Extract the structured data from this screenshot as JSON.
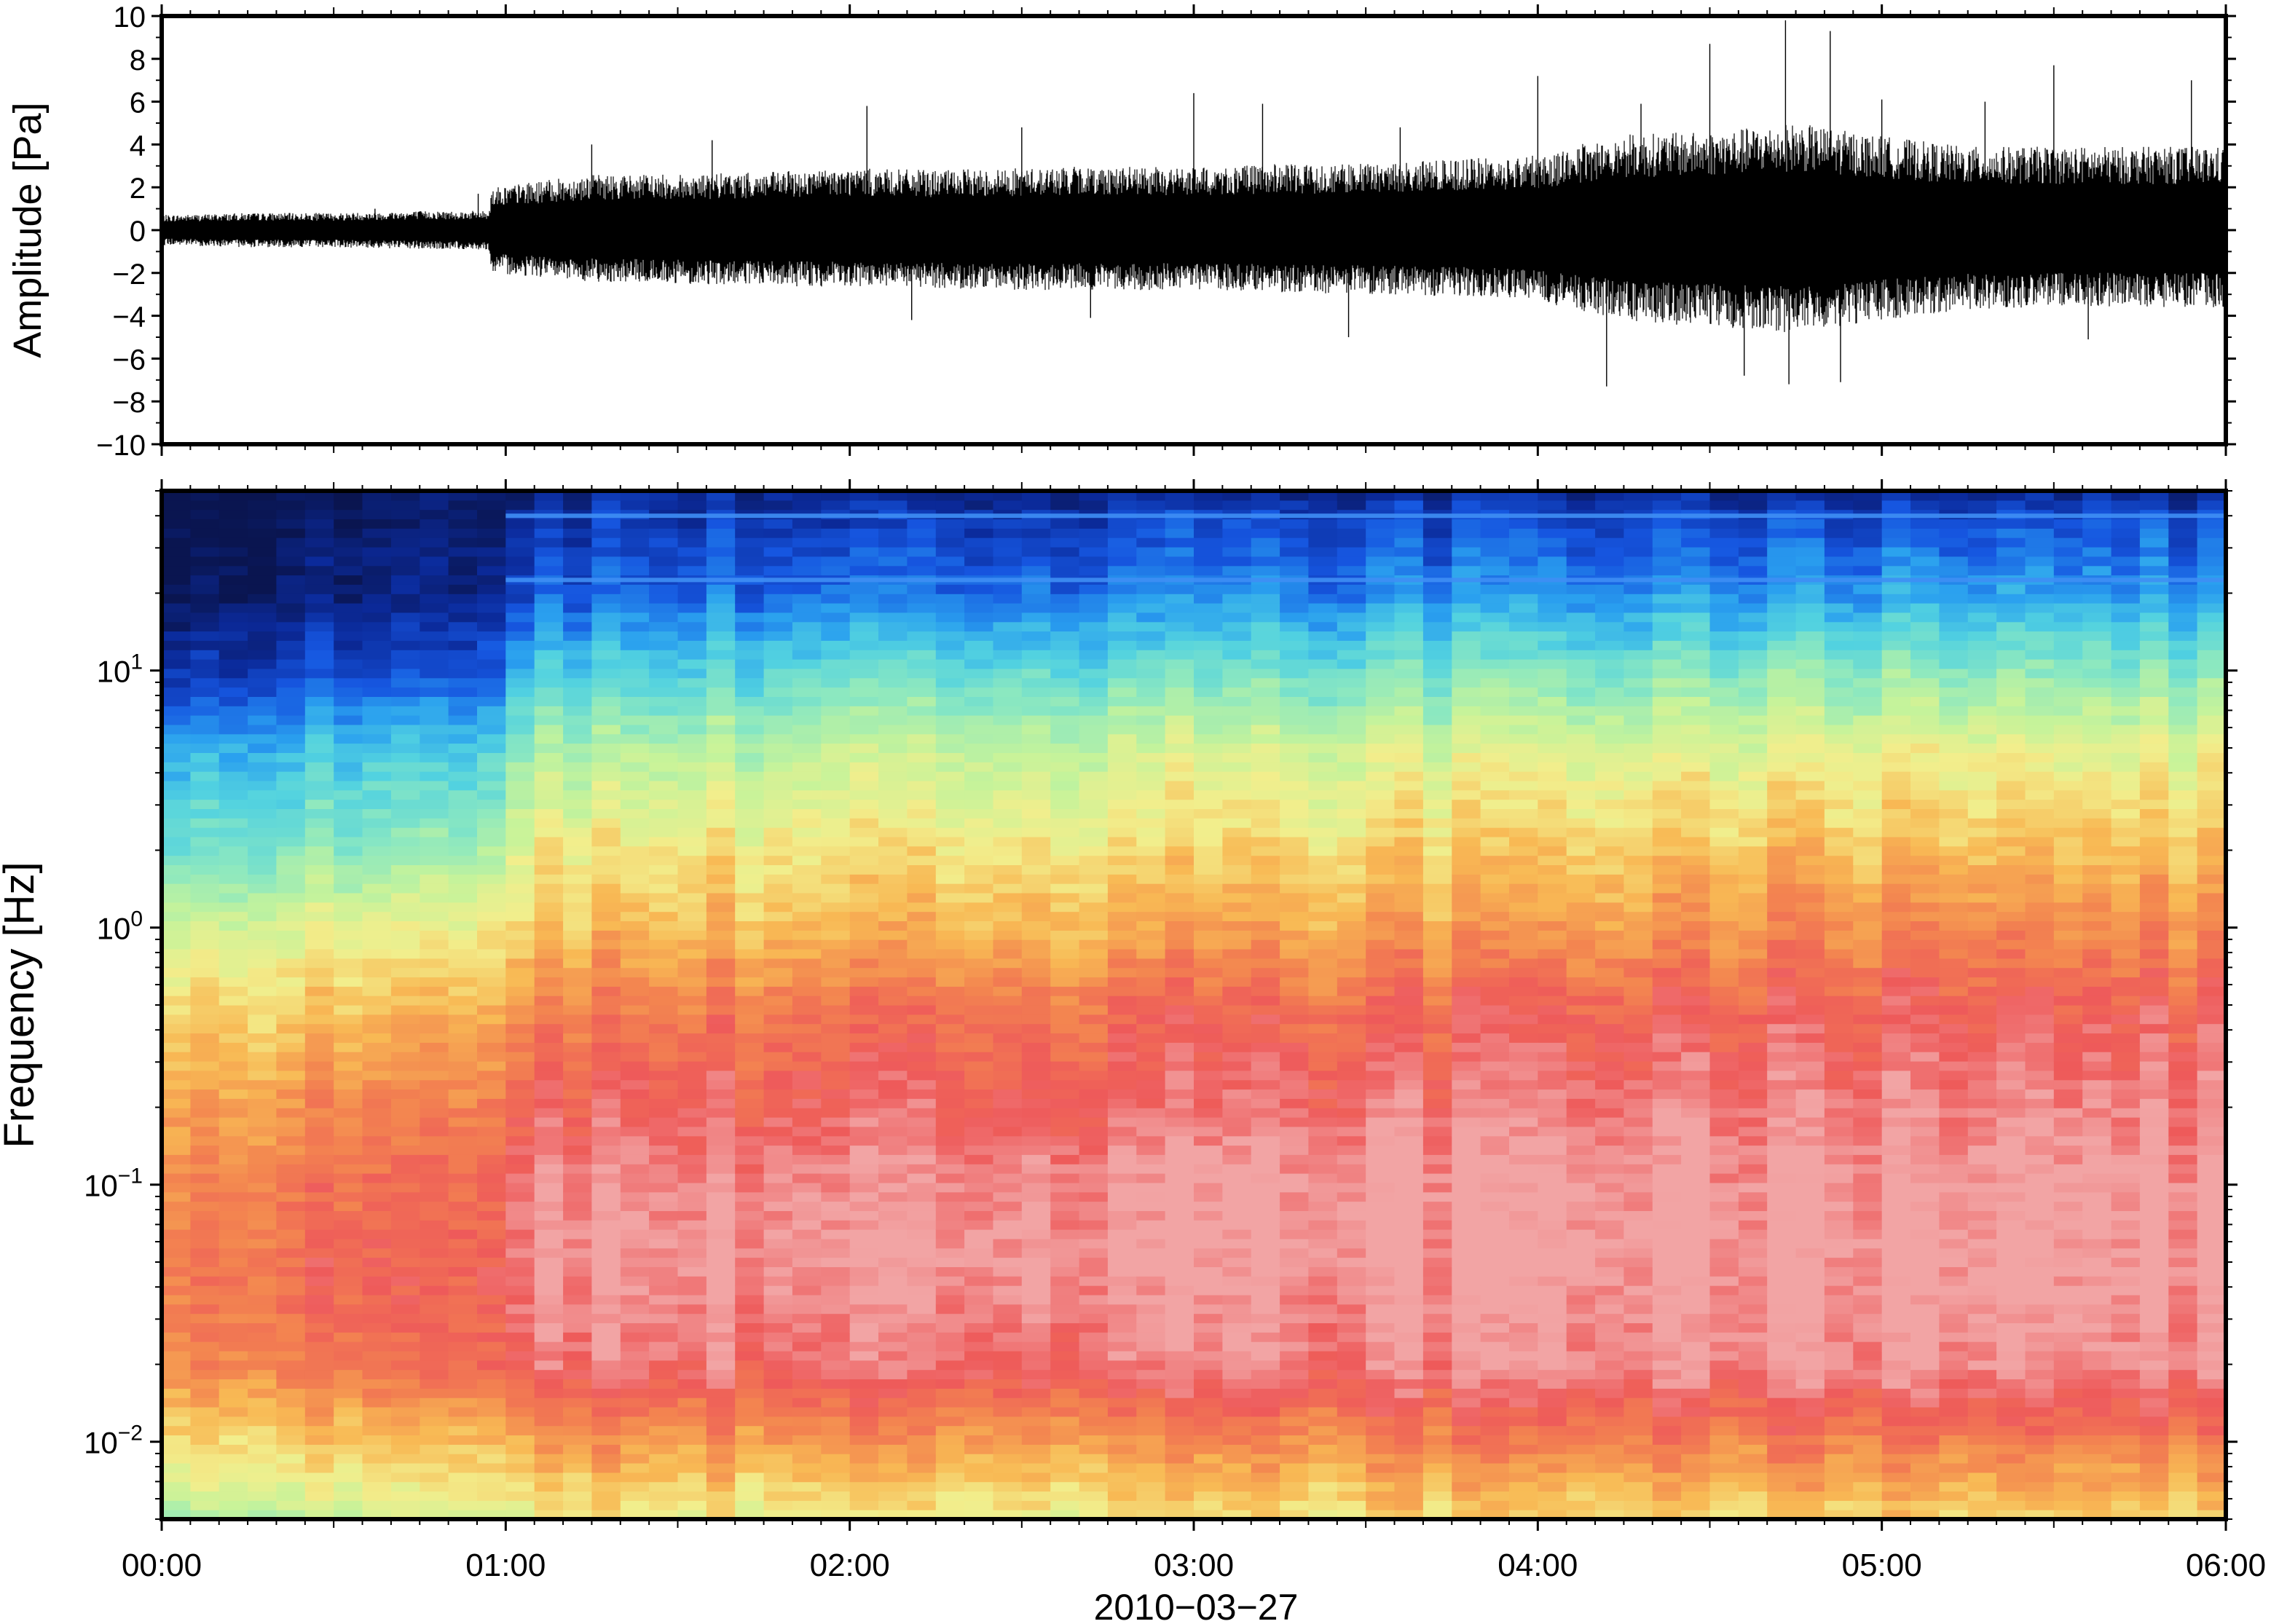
{
  "chart_data": [
    {
      "type": "line",
      "title": "",
      "xlabel": "",
      "ylabel": "Amplitude [Pa]",
      "x_range_hours": [
        0,
        6
      ],
      "ylim": [
        -10,
        10
      ],
      "yticks": [
        -10,
        -8,
        -6,
        -4,
        -2,
        0,
        2,
        4,
        6,
        8,
        10
      ],
      "ytick_labels": [
        "−10",
        "−8",
        "−6",
        "−4",
        "−2",
        "0",
        "2",
        "4",
        "6",
        "8",
        "10"
      ],
      "grid": false,
      "series": [
        {
          "x_hours": [
            0.0,
            0.25,
            0.5,
            0.75,
            0.95,
            0.96,
            1.25,
            1.5,
            1.75,
            2.0,
            2.25,
            2.5,
            2.75,
            3.0,
            3.25,
            3.5,
            3.75,
            4.0,
            4.25,
            4.5,
            4.75,
            5.0,
            5.25,
            5.5,
            5.75,
            6.0
          ],
          "envelope_upper": [
            0.7,
            0.8,
            0.8,
            0.9,
            0.9,
            2.0,
            2.6,
            2.6,
            2.7,
            2.9,
            2.8,
            2.9,
            3.0,
            2.9,
            3.1,
            3.1,
            3.3,
            3.5,
            4.5,
            4.6,
            5.0,
            4.4,
            3.9,
            3.9,
            3.9,
            3.9
          ],
          "envelope_lower": [
            -0.7,
            -0.8,
            -0.8,
            -0.9,
            -0.9,
            -2.0,
            -2.4,
            -2.5,
            -2.6,
            -2.7,
            -2.7,
            -2.8,
            -2.8,
            -2.8,
            -2.9,
            -3.0,
            -3.1,
            -3.3,
            -4.3,
            -4.5,
            -4.8,
            -4.2,
            -3.7,
            -3.6,
            -3.6,
            -3.6
          ],
          "peaks": [
            {
              "x": 0.62,
              "y": 1.0
            },
            {
              "x": 0.92,
              "y": 1.7
            },
            {
              "x": 1.25,
              "y": 4.0
            },
            {
              "x": 1.6,
              "y": 4.2
            },
            {
              "x": 2.05,
              "y": 5.8
            },
            {
              "x": 2.18,
              "y": -4.2
            },
            {
              "x": 2.5,
              "y": 4.8
            },
            {
              "x": 2.7,
              "y": -4.1
            },
            {
              "x": 3.0,
              "y": 6.4
            },
            {
              "x": 3.2,
              "y": 5.9
            },
            {
              "x": 3.45,
              "y": -5.0
            },
            {
              "x": 3.6,
              "y": 4.8
            },
            {
              "x": 4.0,
              "y": 7.2
            },
            {
              "x": 4.2,
              "y": -7.3
            },
            {
              "x": 4.3,
              "y": 5.9
            },
            {
              "x": 4.5,
              "y": 8.7
            },
            {
              "x": 4.6,
              "y": -6.8
            },
            {
              "x": 4.72,
              "y": 9.8
            },
            {
              "x": 4.73,
              "y": -7.2
            },
            {
              "x": 4.85,
              "y": 9.3
            },
            {
              "x": 4.88,
              "y": -7.1
            },
            {
              "x": 5.0,
              "y": 6.1
            },
            {
              "x": 5.3,
              "y": 6.0
            },
            {
              "x": 5.5,
              "y": 7.7
            },
            {
              "x": 5.6,
              "y": -5.1
            },
            {
              "x": 5.9,
              "y": 7.0
            }
          ]
        }
      ]
    },
    {
      "type": "heatmap",
      "title": "",
      "xlabel": "2010−03−27",
      "ylabel": "Frequency [Hz]",
      "y_scale": "log",
      "ylim": [
        0.005,
        50
      ],
      "yticks": [
        0.01,
        0.1,
        1,
        10
      ],
      "ytick_labels": [
        {
          "base": "10",
          "exp": "−2"
        },
        {
          "base": "10",
          "exp": "−1"
        },
        {
          "base": "10",
          "exp": "0"
        },
        {
          "base": "10",
          "exp": "1"
        }
      ],
      "x_range_hours": [
        0,
        6
      ],
      "xticks_hours": [
        0,
        1,
        2,
        3,
        4,
        5,
        6
      ],
      "xtick_labels": [
        "00:00",
        "01:00",
        "02:00",
        "03:00",
        "04:00",
        "05:00",
        "06:00"
      ],
      "colormap": [
        "#0a1550",
        "#0b2a9a",
        "#1656e0",
        "#2aa0ef",
        "#52d2e0",
        "#8ce8c0",
        "#c6f39a",
        "#f2ee8c",
        "#f8b954",
        "#f38550",
        "#ee5a5a",
        "#f2a4a4"
      ],
      "color_value_range": [
        0,
        1
      ],
      "time_hours": [
        0.0,
        0.5,
        0.95,
        1.0,
        1.5,
        2.0,
        2.5,
        3.0,
        3.5,
        4.0,
        4.5,
        5.0,
        5.5,
        6.0
      ],
      "freq_hz": [
        0.005,
        0.01,
        0.02,
        0.05,
        0.1,
        0.2,
        0.5,
        1,
        2,
        5,
        10,
        20,
        40,
        50
      ],
      "values": [
        [
          0.55,
          0.7,
          0.84,
          0.87,
          0.84,
          0.8,
          0.7,
          0.6,
          0.46,
          0.33,
          0.15,
          0.05,
          0.02,
          0.02
        ],
        [
          0.55,
          0.7,
          0.85,
          0.88,
          0.85,
          0.8,
          0.7,
          0.6,
          0.46,
          0.33,
          0.15,
          0.05,
          0.02,
          0.02
        ],
        [
          0.58,
          0.71,
          0.86,
          0.88,
          0.86,
          0.82,
          0.72,
          0.62,
          0.48,
          0.34,
          0.16,
          0.06,
          0.02,
          0.02
        ],
        [
          0.62,
          0.77,
          0.93,
          0.98,
          0.96,
          0.9,
          0.8,
          0.7,
          0.62,
          0.48,
          0.33,
          0.16,
          0.1,
          0.06
        ],
        [
          0.63,
          0.78,
          0.94,
          0.99,
          0.97,
          0.92,
          0.83,
          0.72,
          0.65,
          0.52,
          0.37,
          0.2,
          0.12,
          0.08
        ],
        [
          0.63,
          0.79,
          0.95,
          1.0,
          0.98,
          0.93,
          0.85,
          0.74,
          0.66,
          0.55,
          0.4,
          0.22,
          0.12,
          0.08
        ],
        [
          0.64,
          0.8,
          0.95,
          1.0,
          0.99,
          0.94,
          0.86,
          0.75,
          0.67,
          0.56,
          0.41,
          0.23,
          0.13,
          0.08
        ],
        [
          0.65,
          0.8,
          0.96,
          1.0,
          1.0,
          0.94,
          0.87,
          0.76,
          0.68,
          0.57,
          0.42,
          0.24,
          0.14,
          0.08
        ],
        [
          0.66,
          0.81,
          0.96,
          1.0,
          1.0,
          0.95,
          0.87,
          0.76,
          0.68,
          0.57,
          0.42,
          0.24,
          0.14,
          0.08
        ],
        [
          0.67,
          0.82,
          0.97,
          1.0,
          1.0,
          0.95,
          0.88,
          0.77,
          0.69,
          0.58,
          0.43,
          0.25,
          0.14,
          0.08
        ],
        [
          0.68,
          0.83,
          0.98,
          1.0,
          1.0,
          0.96,
          0.9,
          0.8,
          0.71,
          0.6,
          0.45,
          0.27,
          0.15,
          0.08
        ],
        [
          0.68,
          0.84,
          0.98,
          1.0,
          1.0,
          0.96,
          0.9,
          0.81,
          0.72,
          0.61,
          0.46,
          0.28,
          0.15,
          0.08
        ],
        [
          0.67,
          0.83,
          0.97,
          1.0,
          1.0,
          0.96,
          0.89,
          0.8,
          0.71,
          0.6,
          0.45,
          0.27,
          0.15,
          0.08
        ],
        [
          0.67,
          0.83,
          0.97,
          1.0,
          1.0,
          0.96,
          0.89,
          0.8,
          0.71,
          0.6,
          0.45,
          0.27,
          0.15,
          0.08
        ]
      ],
      "spectral_lines_hz": [
        22.5,
        40.0
      ],
      "grid": false
    }
  ]
}
